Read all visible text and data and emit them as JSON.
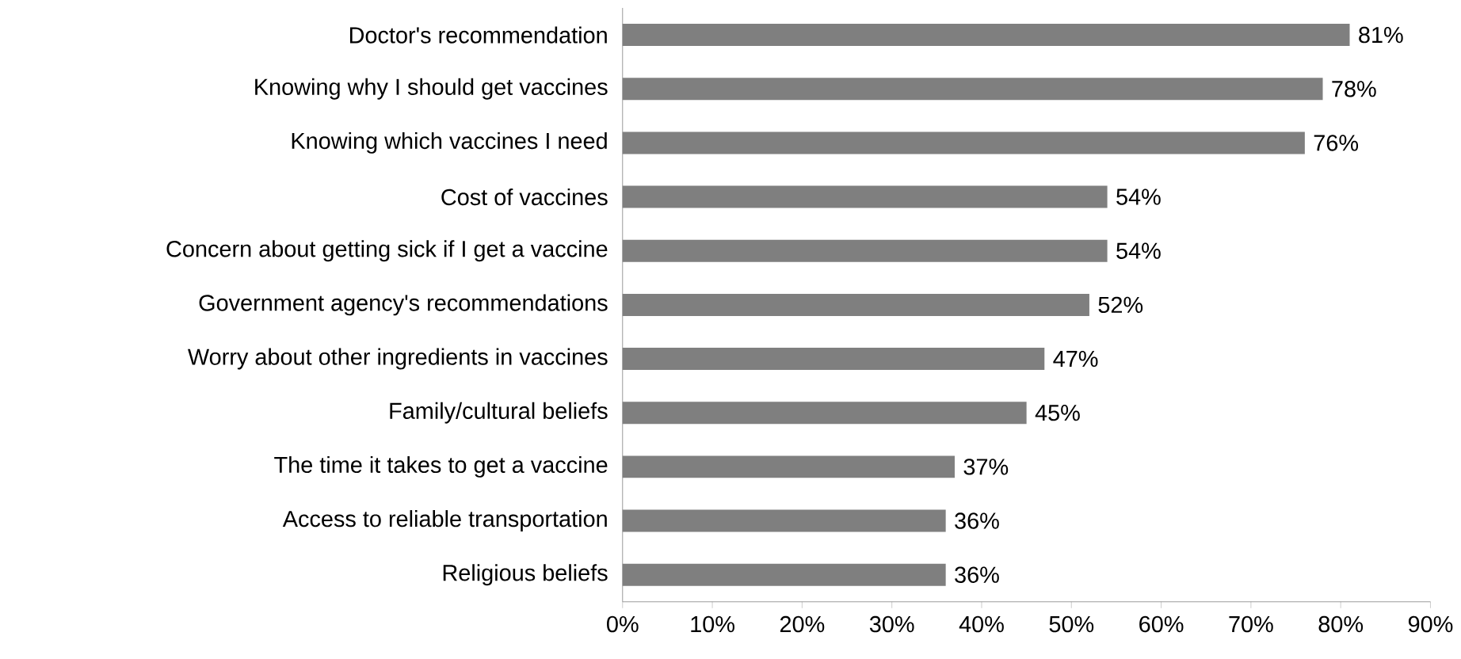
{
  "chart_data": {
    "type": "bar",
    "orientation": "horizontal",
    "color": "#7f7f7f",
    "categories": [
      "Doctor's recommendation",
      "Knowing why I should get vaccines",
      "Knowing which vaccines I need",
      "Cost of vaccines",
      "Concern about getting sick if I get a vaccine",
      "Government agency's recommendations",
      "Worry about other ingredients in vaccines",
      "Family/cultural beliefs",
      "The time it takes to get a vaccine",
      "Access to reliable transportation",
      "Religious beliefs"
    ],
    "values": [
      81,
      78,
      76,
      54,
      54,
      52,
      47,
      45,
      37,
      36,
      36
    ],
    "value_labels": [
      "81%",
      "78%",
      "76%",
      "54%",
      "54%",
      "52%",
      "47%",
      "45%",
      "37%",
      "36%",
      "36%"
    ],
    "xlim": [
      0,
      90
    ],
    "xticks": [
      {
        "value": 0,
        "label": "0%"
      },
      {
        "value": 10,
        "label": "10%"
      },
      {
        "value": 20,
        "label": "20%"
      },
      {
        "value": 30,
        "label": "30%"
      },
      {
        "value": 40,
        "label": "40%"
      },
      {
        "value": 50,
        "label": "50%"
      },
      {
        "value": 60,
        "label": "60%"
      },
      {
        "value": 70,
        "label": "70%"
      },
      {
        "value": 80,
        "label": "80%"
      },
      {
        "value": 90,
        "label": "90%"
      }
    ]
  }
}
